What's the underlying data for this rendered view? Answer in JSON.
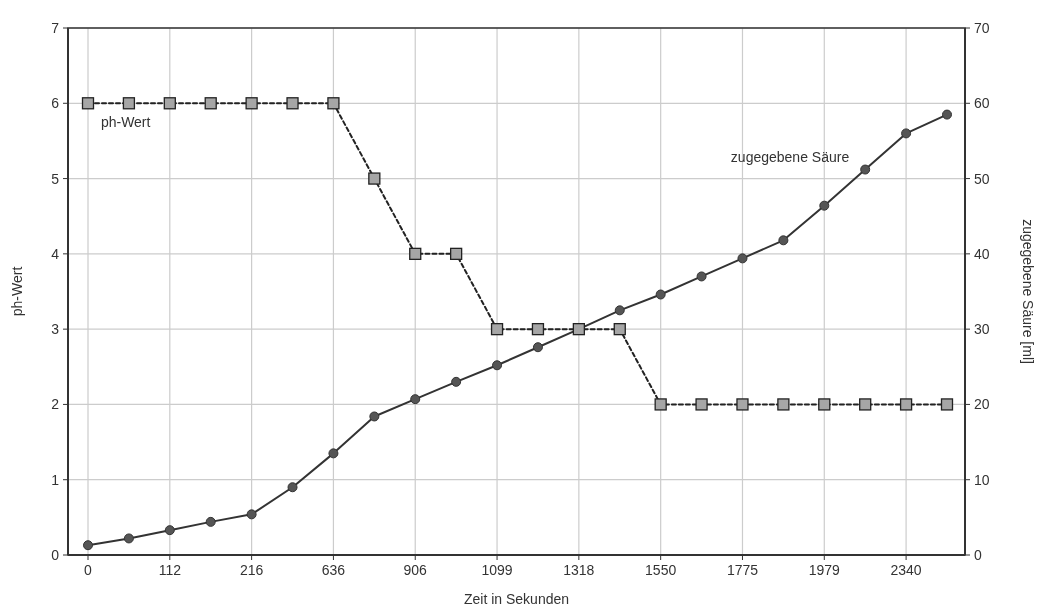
{
  "chart_data": {
    "type": "line",
    "xlabel": "Zeit in Sekunden",
    "ylabel": "ph-Wert",
    "y2label": "zugegebene Säure [ml]",
    "categories": [
      "0",
      null,
      "112",
      null,
      "216",
      null,
      "636",
      null,
      "906",
      null,
      "1099",
      null,
      "1318",
      null,
      "1550",
      null,
      "1775",
      null,
      "1979",
      null,
      "2340",
      null
    ],
    "ylim": [
      0,
      7
    ],
    "yticks": [
      0,
      1,
      2,
      3,
      4,
      5,
      6,
      7
    ],
    "y2lim": [
      0,
      70
    ],
    "y2ticks": [
      0,
      10,
      20,
      30,
      40,
      50,
      60,
      70
    ],
    "grid": true,
    "series": [
      {
        "name": "ph-Wert",
        "color": "#222222",
        "marker": "square",
        "line_style": "dotted",
        "values": [
          6,
          6,
          6,
          6,
          6,
          6,
          6,
          5,
          4,
          4,
          3,
          3,
          3,
          3,
          2,
          2,
          2,
          2,
          2,
          2,
          2,
          2
        ]
      },
      {
        "name": "zugegebene Säure",
        "color": "#333333",
        "marker": "circle",
        "line_style": "solid",
        "axis": "y2",
        "values": [
          1.3,
          2.2,
          3.3,
          4.4,
          5.4,
          9,
          13.5,
          18.4,
          20.7,
          23,
          25.2,
          27.6,
          30,
          32.5,
          34.6,
          37,
          39.4,
          41.8,
          46.4,
          51.2,
          56,
          58.5
        ]
      }
    ]
  }
}
